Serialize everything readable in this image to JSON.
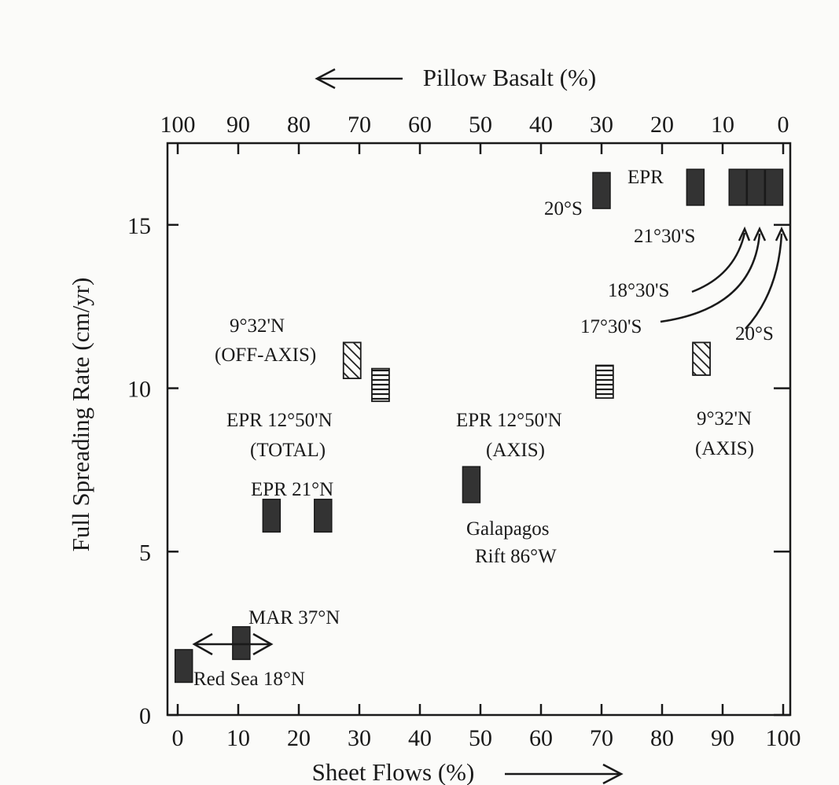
{
  "chart_data": {
    "type": "scatter",
    "x_label": "Sheet Flows (%)",
    "x_top_label": "Pillow Basalt (%)",
    "y_label": "Full Spreading Rate (cm/yr)",
    "xlim": [
      0,
      100
    ],
    "ylim": [
      0,
      17.5
    ],
    "x_ticks": [
      0,
      10,
      20,
      30,
      40,
      50,
      60,
      70,
      80,
      90,
      100
    ],
    "x_top_ticks": [
      100,
      90,
      80,
      70,
      60,
      50,
      40,
      30,
      20,
      10,
      0
    ],
    "y_ticks": [
      0,
      5,
      10,
      15
    ],
    "points": [
      {
        "x": 1,
        "y_min": 1.0,
        "y_max": 2.0,
        "style": "solid",
        "site": "Red Sea 18°N"
      },
      {
        "x": 10.5,
        "y_min": 1.7,
        "y_max": 2.7,
        "style": "solid",
        "site": "MAR 37°N"
      },
      {
        "x": 15.5,
        "y_min": 5.6,
        "y_max": 6.6,
        "style": "solid",
        "site": "EPR 21°N"
      },
      {
        "x": 24,
        "y_min": 5.6,
        "y_max": 6.6,
        "style": "solid",
        "site": "EPR 21°N"
      },
      {
        "x": 28.8,
        "y_min": 10.3,
        "y_max": 11.4,
        "style": "hatched",
        "site": "9°32'N (OFF-AXIS)"
      },
      {
        "x": 33.5,
        "y_min": 9.6,
        "y_max": 10.6,
        "style": "striped",
        "site": "EPR 12°50'N (TOTAL)"
      },
      {
        "x": 48.5,
        "y_min": 6.5,
        "y_max": 7.6,
        "style": "solid",
        "site": "Galapagos Rift 86°W"
      },
      {
        "x": 70.5,
        "y_min": 9.7,
        "y_max": 10.7,
        "style": "striped",
        "site": "EPR 12°50'N (AXIS)"
      },
      {
        "x": 86.5,
        "y_min": 10.4,
        "y_max": 11.4,
        "style": "hatched",
        "site": "9°32'N (AXIS)"
      },
      {
        "x": 70,
        "y_min": 15.5,
        "y_max": 16.6,
        "style": "solid",
        "site": "EPR 20°S"
      },
      {
        "x": 85.5,
        "y_min": 15.6,
        "y_max": 16.7,
        "style": "solid",
        "site": "EPR 21°30'S"
      },
      {
        "x": 92.5,
        "y_min": 15.6,
        "y_max": 16.7,
        "style": "solid",
        "site": "EPR 18°30'S"
      },
      {
        "x": 95.5,
        "y_min": 15.6,
        "y_max": 16.7,
        "style": "solid",
        "site": "EPR 17°30'S"
      },
      {
        "x": 98.5,
        "y_min": 15.6,
        "y_max": 16.7,
        "style": "solid",
        "site": "EPR 20°S"
      }
    ],
    "annotations": {
      "epr": "EPR",
      "s20a": "20°S",
      "s2130": "21°30'S",
      "s1830": "18°30'S",
      "s1730": "17°30'S",
      "s20b": "20°S",
      "offaxis1": "9°32'N",
      "offaxis2": "(OFF-AXIS)",
      "total1": "EPR 12°50'N",
      "total2": "(TOTAL)",
      "axis1": "EPR 12°50'N",
      "axis2": "(AXIS)",
      "n932axis1": "9°32'N",
      "n932axis2": "(AXIS)",
      "epr21n": "EPR 21°N",
      "gal1": "Galapagos",
      "gal2": "Rift 86°W",
      "mar": "MAR 37°N",
      "redsea": "Red Sea 18°N"
    }
  }
}
